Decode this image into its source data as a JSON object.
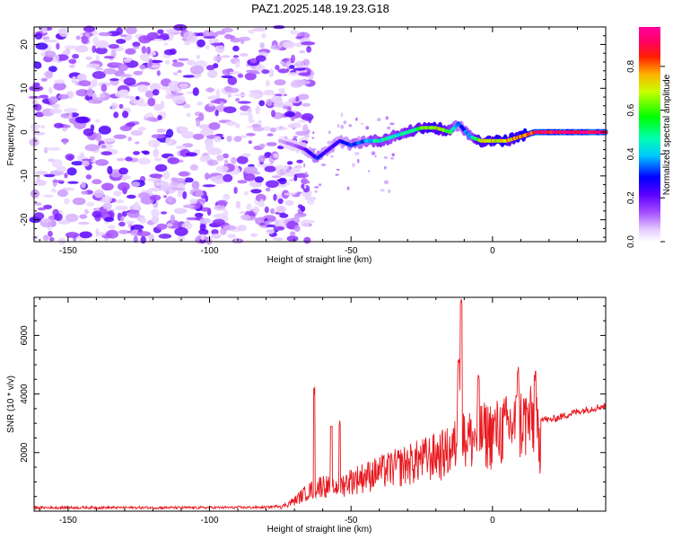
{
  "title": "PAZ1.2025.148.19.23.G18",
  "chart_data": [
    {
      "type": "heatmap",
      "xlabel": "Height of straight line (km)",
      "ylabel": "Frequency (Hz)",
      "xlim": [
        -162,
        40
      ],
      "ylim": [
        -25,
        24
      ],
      "xticks": [
        -150,
        -100,
        -50,
        0
      ],
      "yticks": [
        -20,
        -10,
        0,
        10,
        20
      ],
      "colorbar": {
        "label": "Normalized spectral amplitude",
        "range": [
          0,
          0.98
        ],
        "ticks": [
          "0.0",
          "0.2",
          "0.4",
          "0.6",
          "0.8"
        ]
      },
      "ridge": {
        "x": [
          -75,
          -70,
          -66,
          -62,
          -58,
          -54,
          -50,
          -45,
          -40,
          -35,
          -30,
          -25,
          -20,
          -15,
          -12,
          -8,
          -4,
          0,
          5,
          10,
          15,
          20,
          30,
          40
        ],
        "y": [
          -2,
          -3,
          -4,
          -6,
          -4,
          -2,
          -3,
          -2,
          -2,
          -1,
          0,
          1,
          1,
          0,
          2,
          -1,
          -2,
          -2,
          -2,
          -1,
          0,
          0,
          0,
          0
        ],
        "amplitude": [
          0.08,
          0.12,
          0.2,
          0.3,
          0.22,
          0.25,
          0.3,
          0.35,
          0.45,
          0.45,
          0.5,
          0.6,
          0.7,
          0.55,
          0.3,
          0.4,
          0.65,
          0.7,
          0.72,
          0.75,
          0.9,
          0.95,
          0.95,
          0.95
        ]
      },
      "noise_region_x": [
        -162,
        -70
      ]
    },
    {
      "type": "line",
      "xlabel": "Height of straight line (km)",
      "ylabel": "SNR (10 * v/v)",
      "xlim": [
        -162,
        40
      ],
      "ylim": [
        0,
        7300
      ],
      "xticks": [
        -150,
        -100,
        -50,
        0
      ],
      "yticks": [
        2000,
        4000,
        6000
      ],
      "color": "#e8191f",
      "envelope": {
        "x": [
          -162,
          -100,
          -80,
          -75,
          -70,
          -66,
          -60,
          -56,
          -50,
          -45,
          -40,
          -35,
          -30,
          -25,
          -20,
          -15,
          -13,
          -12,
          -11,
          -10,
          -9,
          -7,
          -5,
          0,
          5,
          10,
          13,
          15,
          17,
          20,
          30,
          40
        ],
        "y": [
          120,
          120,
          130,
          180,
          500,
          900,
          1300,
          1100,
          1500,
          1700,
          1900,
          2100,
          2300,
          2500,
          2700,
          2900,
          3200,
          5000,
          7300,
          3300,
          3600,
          3400,
          3700,
          3800,
          4000,
          4300,
          4300,
          4300,
          3200,
          3100,
          3400,
          3600
        ]
      },
      "spikes": [
        {
          "x": -63,
          "y": 4300
        },
        {
          "x": -57,
          "y": 2900
        },
        {
          "x": -54,
          "y": 3100
        },
        {
          "x": -11,
          "y": 7300
        },
        {
          "x": -12,
          "y": 5500
        },
        {
          "x": -5,
          "y": 4700
        },
        {
          "x": 9,
          "y": 5100
        },
        {
          "x": 15,
          "y": 4800
        }
      ]
    }
  ]
}
